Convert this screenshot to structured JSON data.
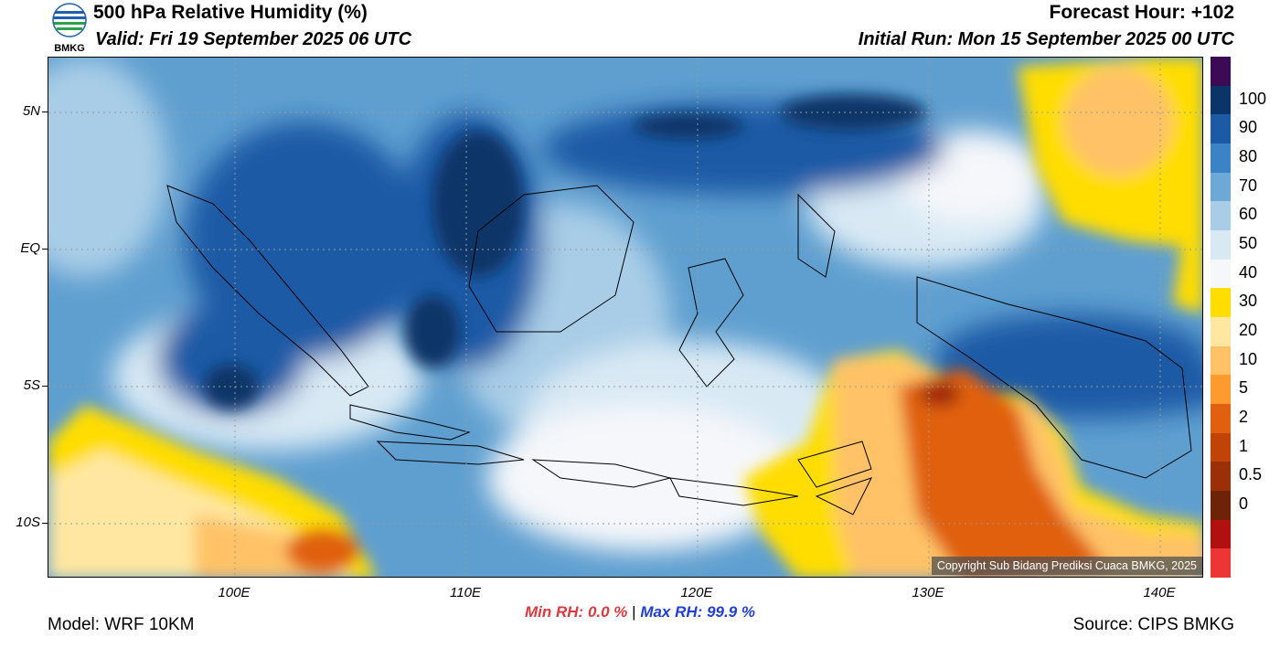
{
  "header": {
    "title": "500 hPa Relative Humidity (%)",
    "valid": "Valid: Fri 19 September 2025 06 UTC",
    "forecast_hour": "Forecast Hour: +102",
    "initial_run": "Initial Run: Mon 15 September 2025 00 UTC",
    "logo_text": "BMKG"
  },
  "map": {
    "lat_labels": [
      "5N",
      "EQ",
      "5S",
      "10S"
    ],
    "lon_labels": [
      "100E",
      "110E",
      "120E",
      "130E",
      "140E"
    ],
    "copyright": "Copyright Sub Bidang Prediksi Cuaca BMKG, 2025"
  },
  "colorbar": {
    "labels": [
      "100",
      "90",
      "80",
      "70",
      "60",
      "50",
      "40",
      "30",
      "20",
      "10",
      "5",
      "2",
      "1",
      "0.5",
      "0"
    ],
    "colors": [
      "#3d0a55",
      "#0b3468",
      "#1d5aa6",
      "#3b83c4",
      "#6ea8d6",
      "#a9cde7",
      "#d8e9f4",
      "#f5f7fa",
      "#ffdd00",
      "#ffe7a1",
      "#ffc266",
      "#ff9a2e",
      "#e06010",
      "#c04408",
      "#9a2f08",
      "#6e2208",
      "#b01010",
      "#ee3535"
    ]
  },
  "stats": {
    "min_label": "Min RH:",
    "min_value": "0.0 %",
    "separator": "|",
    "max_label": "Max RH:",
    "max_value": "99.9 %"
  },
  "footer": {
    "model": "Model: WRF 10KM",
    "source": "Source: CIPS BMKG"
  }
}
